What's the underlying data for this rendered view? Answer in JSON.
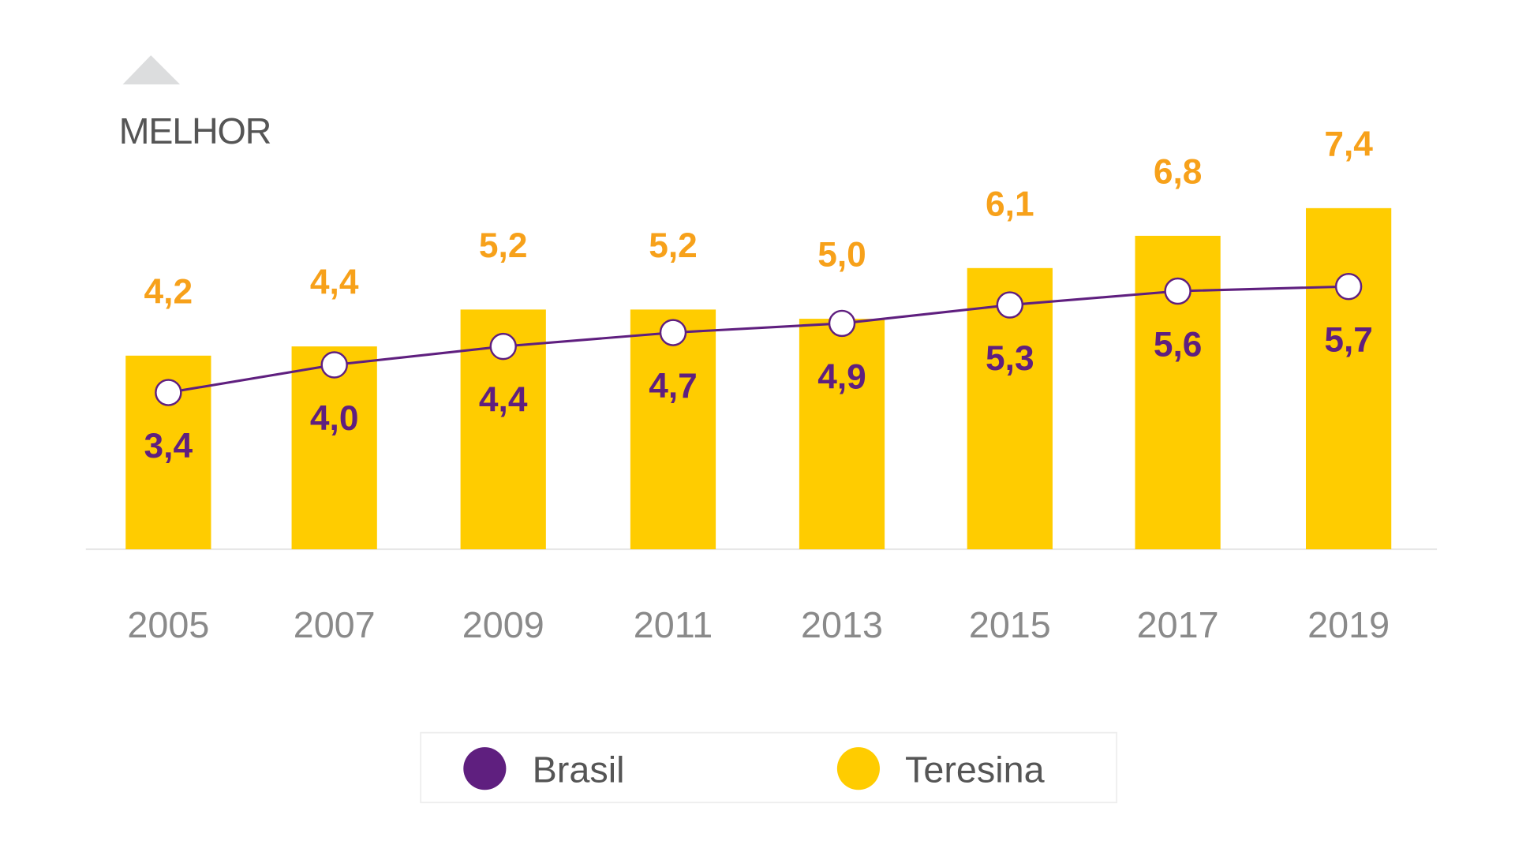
{
  "indicator": {
    "label": "MELHOR",
    "icon": "triangle-up-icon"
  },
  "colors": {
    "teresina": "#FFCC00",
    "brasil": "#5F1F7F",
    "teresina_label": "#F7A11A",
    "axis_text": "#8A8A8A"
  },
  "chart_data": {
    "type": "bar",
    "categories": [
      "2005",
      "2007",
      "2009",
      "2011",
      "2013",
      "2015",
      "2017",
      "2019"
    ],
    "series": [
      {
        "name": "Teresina",
        "kind": "bar",
        "values": [
          4.2,
          4.4,
          5.2,
          5.2,
          5.0,
          6.1,
          6.8,
          7.4
        ],
        "labels": [
          "4,2",
          "4,4",
          "5,2",
          "5,2",
          "5,0",
          "6,1",
          "6,8",
          "7,4"
        ]
      },
      {
        "name": "Brasil",
        "kind": "line",
        "values": [
          3.4,
          4.0,
          4.4,
          4.7,
          4.9,
          5.3,
          5.6,
          5.7
        ],
        "labels": [
          "3,4",
          "4,0",
          "4,4",
          "4,7",
          "4,9",
          "5,3",
          "5,6",
          "5,7"
        ]
      }
    ],
    "ylim": [
      0,
      7.4
    ],
    "grid": false,
    "legend": {
      "position": "bottom",
      "items": [
        "Brasil",
        "Teresina"
      ]
    }
  }
}
